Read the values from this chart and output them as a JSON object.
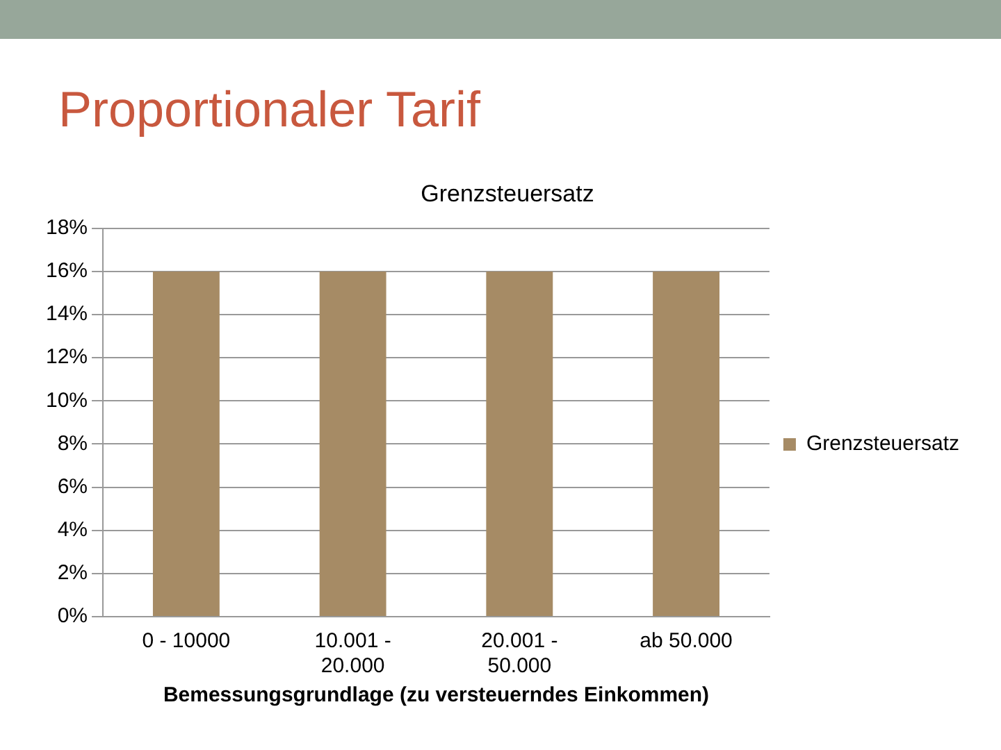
{
  "chart_data": {
    "type": "bar",
    "title": "Proportionaler Tarif",
    "subtitle": "Grenzsteuersatz",
    "xlabel": "Bemessungsgrundlage (zu versteuerndes Einkommen)",
    "categories": [
      "0 - 10000",
      "10.001 - 20.000",
      "20.001 - 50.000",
      "ab 50.000"
    ],
    "series": [
      {
        "name": "Grenzsteuersatz",
        "color": "#a68b65",
        "values": [
          16,
          16,
          16,
          16
        ]
      }
    ],
    "ylim": [
      0,
      18
    ],
    "yticks": [
      {
        "value": 0,
        "label": "0%"
      },
      {
        "value": 2,
        "label": "2%"
      },
      {
        "value": 4,
        "label": "4%"
      },
      {
        "value": 6,
        "label": "6%"
      },
      {
        "value": 8,
        "label": "8%"
      },
      {
        "value": 10,
        "label": "10%"
      },
      {
        "value": 12,
        "label": "12%"
      },
      {
        "value": 14,
        "label": "14%"
      },
      {
        "value": 16,
        "label": "16%"
      },
      {
        "value": 18,
        "label": "18%"
      }
    ],
    "grid": "y",
    "legend": "right"
  }
}
